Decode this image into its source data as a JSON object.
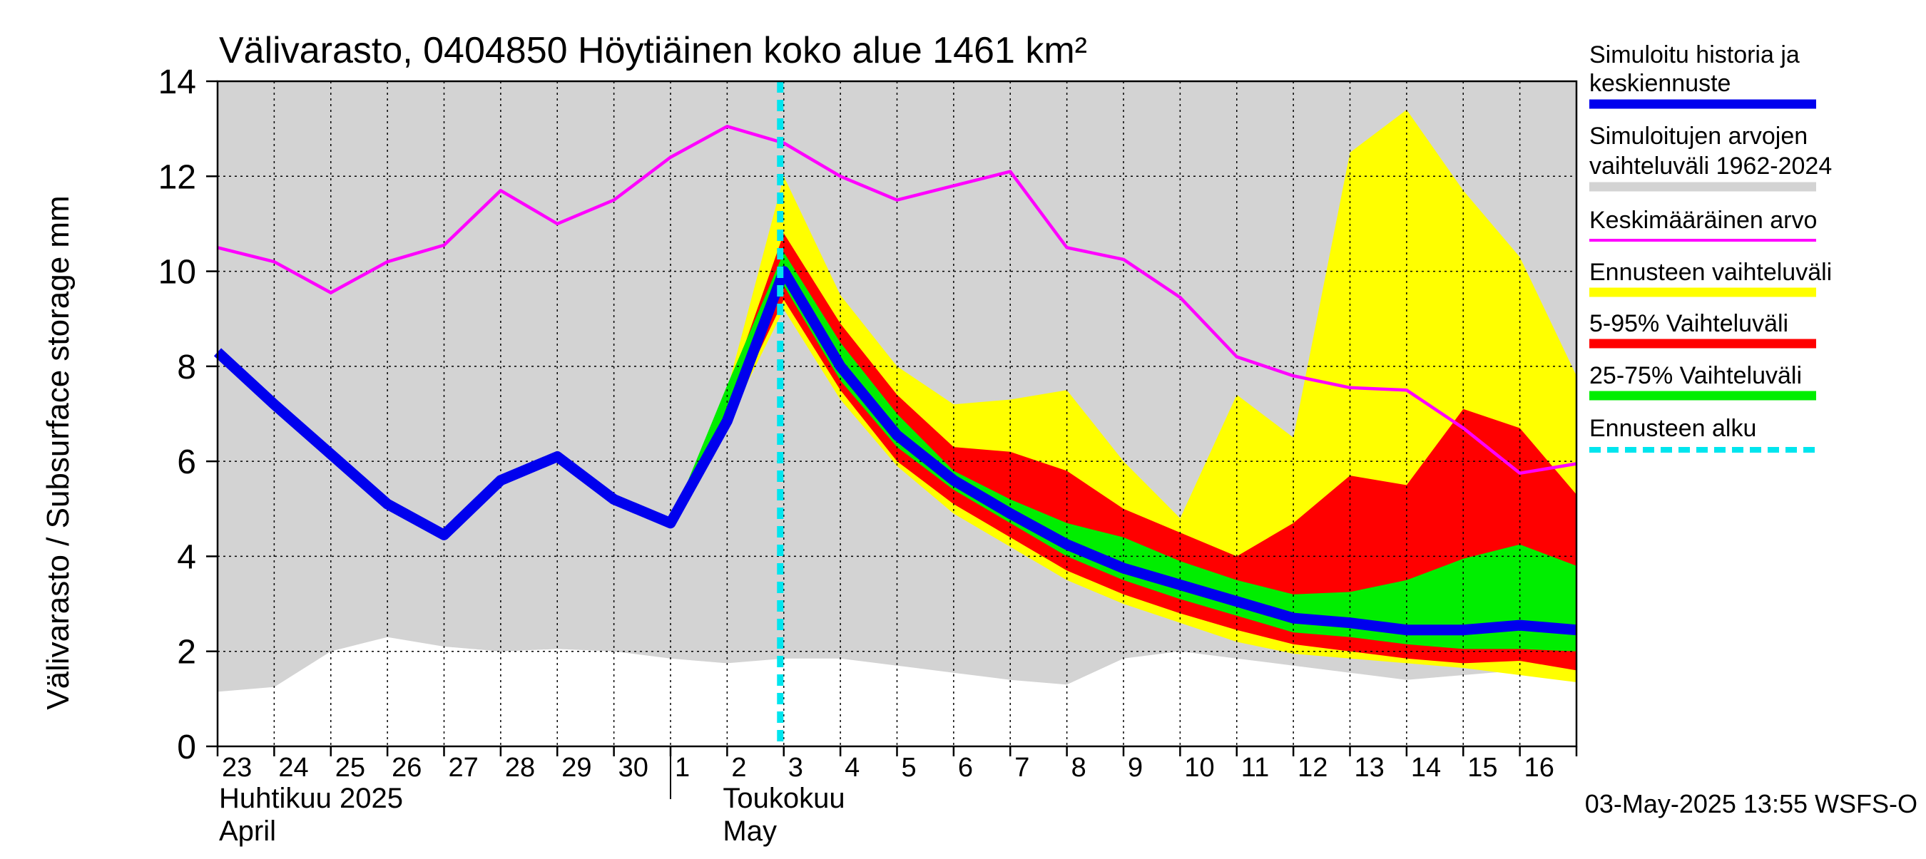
{
  "chart_data": {
    "type": "area",
    "title": "Välivarasto, 0404850 Höytiäinen koko alue 1461 km²",
    "ylabel": "Välivarasto / Subsurface storage  mm",
    "ylim": [
      0,
      14
    ],
    "yticks": [
      0,
      2,
      4,
      6,
      8,
      10,
      12,
      14
    ],
    "grid": true,
    "legend_position": "right",
    "x_dates": [
      "2025-04-23",
      "2025-04-24",
      "2025-04-25",
      "2025-04-26",
      "2025-04-27",
      "2025-04-28",
      "2025-04-29",
      "2025-04-30",
      "2025-05-01",
      "2025-05-02",
      "2025-05-03",
      "2025-05-04",
      "2025-05-05",
      "2025-05-06",
      "2025-05-07",
      "2025-05-08",
      "2025-05-09",
      "2025-05-10",
      "2025-05-11",
      "2025-05-12",
      "2025-05-13",
      "2025-05-14",
      "2025-05-15",
      "2025-05-16",
      "2025-05-17"
    ],
    "x_tick_labels": [
      "23",
      "24",
      "25",
      "26",
      "27",
      "28",
      "29",
      "30",
      "1",
      "2",
      "3",
      "4",
      "5",
      "6",
      "7",
      "8",
      "9",
      "10",
      "11",
      "12",
      "13",
      "14",
      "15",
      "16"
    ],
    "month_labels": [
      {
        "fi": "Huhtikuu  2025",
        "en": "April"
      },
      {
        "fi": "Toukokuu",
        "en": "May"
      }
    ],
    "forecast_start": "2025-05-03",
    "series": [
      {
        "name": "Simuloitujen arvojen vaihteluväli 1962-2024",
        "kind": "band",
        "color": "#d3d3d3",
        "upper": [
          14,
          14,
          14,
          14,
          14,
          14,
          14,
          14,
          14,
          14,
          14,
          14,
          14,
          14,
          14,
          14,
          14,
          14,
          14,
          14,
          14,
          14,
          14,
          14,
          14
        ],
        "lower": [
          1.15,
          1.25,
          2.0,
          2.3,
          2.1,
          2.0,
          2.05,
          2.0,
          1.85,
          1.75,
          1.85,
          1.85,
          1.7,
          1.55,
          1.4,
          1.3,
          1.85,
          2.0,
          1.85,
          1.7,
          1.55,
          1.4,
          1.5,
          1.6,
          1.55
        ]
      },
      {
        "name": "Ennusteen vaihteluväli",
        "kind": "band",
        "color": "#ffff00",
        "upper": [
          null,
          null,
          null,
          null,
          null,
          null,
          null,
          null,
          4.7,
          7.5,
          12.0,
          9.5,
          8.0,
          7.2,
          7.3,
          7.5,
          6.0,
          4.8,
          7.4,
          6.5,
          12.5,
          13.4,
          11.7,
          10.3,
          7.8
        ],
        "lower": [
          null,
          null,
          null,
          null,
          null,
          null,
          null,
          null,
          4.7,
          6.8,
          9.2,
          7.3,
          5.9,
          4.9,
          4.2,
          3.5,
          3.0,
          2.6,
          2.2,
          1.95,
          1.85,
          1.75,
          1.65,
          1.5,
          1.35
        ]
      },
      {
        "name": "5-95% Vaihteluväli",
        "kind": "band",
        "color": "#ff0000",
        "upper": [
          null,
          null,
          null,
          null,
          null,
          null,
          null,
          null,
          4.7,
          7.4,
          10.8,
          8.9,
          7.4,
          6.3,
          6.2,
          5.8,
          5.0,
          4.5,
          4.0,
          4.7,
          5.7,
          5.5,
          7.1,
          6.7,
          5.3
        ],
        "lower": [
          null,
          null,
          null,
          null,
          null,
          null,
          null,
          null,
          4.7,
          6.9,
          9.4,
          7.5,
          6.0,
          5.1,
          4.4,
          3.7,
          3.2,
          2.8,
          2.45,
          2.15,
          2.0,
          1.85,
          1.75,
          1.8,
          1.6
        ]
      },
      {
        "name": "25-75% Vaihteluväli",
        "kind": "band",
        "color": "#00ee00",
        "upper": [
          null,
          null,
          null,
          null,
          null,
          null,
          null,
          null,
          4.7,
          7.6,
          10.4,
          8.5,
          7.0,
          5.8,
          5.2,
          4.7,
          4.4,
          3.9,
          3.5,
          3.2,
          3.25,
          3.5,
          3.95,
          4.25,
          3.8
        ],
        "lower": [
          null,
          null,
          null,
          null,
          null,
          null,
          null,
          null,
          4.7,
          6.8,
          9.7,
          7.7,
          6.3,
          5.4,
          4.7,
          4.0,
          3.5,
          3.1,
          2.75,
          2.4,
          2.3,
          2.15,
          2.05,
          2.05,
          2.0
        ]
      },
      {
        "name": "Keskimääräinen arvo",
        "kind": "line",
        "color": "#ff00ff",
        "values": [
          10.5,
          10.2,
          9.55,
          10.2,
          10.55,
          11.7,
          11.0,
          11.5,
          12.4,
          13.05,
          12.7,
          12.0,
          11.5,
          11.8,
          12.1,
          10.5,
          10.25,
          9.45,
          8.2,
          7.8,
          7.55,
          7.5,
          6.7,
          5.75,
          5.95
        ]
      },
      {
        "name": "Simuloitu historia ja keskiennuste",
        "kind": "line",
        "color": "#0000ee",
        "values": [
          8.3,
          7.2,
          6.15,
          5.1,
          4.45,
          5.6,
          6.1,
          5.2,
          4.7,
          6.85,
          10.0,
          8.0,
          6.55,
          5.6,
          4.9,
          4.25,
          3.75,
          3.4,
          3.05,
          2.7,
          2.6,
          2.45,
          2.45,
          2.55,
          2.45
        ]
      }
    ],
    "legend": [
      {
        "label": "Simuloitu historia ja keskiennuste",
        "color": "#0000ee",
        "style": "thick"
      },
      {
        "label": "Simuloitujen arvojen vaihteluväli 1962-2024",
        "color": "#d3d3d3",
        "style": "thick"
      },
      {
        "label": "Keskimääräinen arvo",
        "color": "#ff00ff",
        "style": "thin"
      },
      {
        "label": "Ennusteen vaihteluväli",
        "color": "#ffff00",
        "style": "thick"
      },
      {
        "label": "5-95% Vaihteluväli",
        "color": "#ff0000",
        "style": "thick"
      },
      {
        "label": "25-75% Vaihteluväli",
        "color": "#00ee00",
        "style": "thick"
      },
      {
        "label": "Ennusteen alku",
        "color": "#00e5ee",
        "style": "dashed"
      }
    ],
    "footer": "03-May-2025 13:55 WSFS-O"
  }
}
